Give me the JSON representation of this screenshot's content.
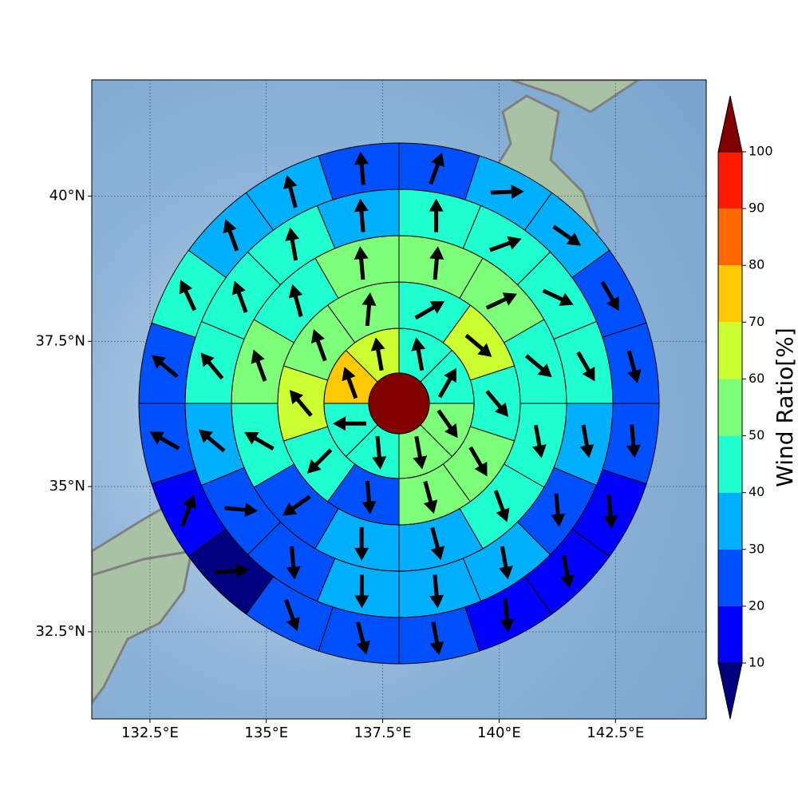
{
  "chart_data": {
    "type": "polar-sector-map",
    "xlim": [
      131.25,
      144.45
    ],
    "ylim": [
      31,
      42
    ],
    "xticks": [
      {
        "value": 132.5,
        "label": "132.5°E"
      },
      {
        "value": 135,
        "label": "135°E"
      },
      {
        "value": 137.5,
        "label": "137.5°E"
      },
      {
        "value": 140,
        "label": "140°E"
      },
      {
        "value": 142.5,
        "label": "142.5°E"
      }
    ],
    "yticks": [
      {
        "value": 32.5,
        "label": "32.5°N"
      },
      {
        "value": 35,
        "label": "35°N"
      },
      {
        "value": 37.5,
        "label": "37.5°N"
      },
      {
        "value": 40,
        "label": "40°N"
      }
    ],
    "grid": true,
    "colorbar": {
      "label": "Wind Ratio[%]",
      "ticks": [
        10,
        20,
        30,
        40,
        50,
        60,
        70,
        80,
        90,
        100
      ],
      "colors": [
        "#0000ff",
        "#0050ff",
        "#00b0ff",
        "#20ffd0",
        "#7dff7a",
        "#ccff30",
        "#ffc800",
        "#ff6a00",
        "#ff1a00"
      ],
      "under_color": "#000080",
      "over_color": "#800000"
    },
    "rings": [
      {
        "values": [
          45,
          44,
          55,
          55,
          45,
          42,
          75,
          65
        ],
        "directions": [
          -10,
          30,
          145,
          170,
          175,
          270,
          -20,
          -10
        ]
      },
      {
        "values": [
          45,
          65,
          45,
          55,
          55,
          25,
          45,
          65,
          55,
          55
        ],
        "directions": [
          60,
          130,
          140,
          150,
          165,
          175,
          225,
          -40,
          -20,
          5
        ]
      },
      {
        "values": [
          55,
          52,
          45,
          42,
          45,
          35,
          35,
          25,
          42,
          55,
          45,
          55
        ],
        "directions": [
          5,
          65,
          130,
          170,
          160,
          165,
          180,
          235,
          -60,
          -20,
          -15,
          -5
        ]
      },
      {
        "values": [
          45,
          45,
          42,
          42,
          35,
          25,
          35,
          32,
          35,
          25,
          25,
          35,
          42,
          45,
          45,
          35
        ],
        "directions": [
          0,
          70,
          115,
          150,
          170,
          175,
          170,
          175,
          180,
          175,
          95,
          -50,
          -40,
          -20,
          -10,
          -5
        ]
      },
      {
        "values": [
          25,
          35,
          35,
          25,
          25,
          25,
          15,
          15,
          18,
          22,
          22,
          22,
          8,
          15,
          25,
          25,
          42,
          35,
          35,
          25
        ],
        "directions": [
          20,
          88,
          125,
          150,
          165,
          175,
          175,
          170,
          175,
          170,
          165,
          160,
          85,
          20,
          -60,
          -50,
          -25,
          -20,
          -15,
          -5
        ]
      }
    ]
  }
}
